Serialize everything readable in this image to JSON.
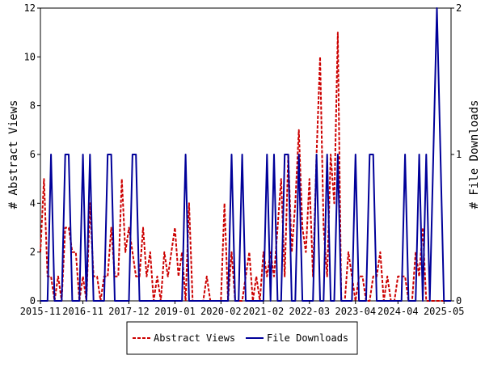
{
  "chart_data": {
    "type": "line",
    "title": "",
    "ylabel_left": "# Abstract Views",
    "ylabel_right": "# File Downloads",
    "ylim_left": [
      0,
      12
    ],
    "ylim_right": [
      0,
      2
    ],
    "yticks_left": [
      "0",
      "2",
      "4",
      "6",
      "8",
      "10",
      "12"
    ],
    "yticks_right": [
      "0",
      "1",
      "2"
    ],
    "x_range": [
      "2015-11",
      "2025-07"
    ],
    "xtick_labels": [
      "2015-11",
      "2016-11",
      "2017-12",
      "2019-01",
      "2020-02",
      "2021-02",
      "2022-03",
      "2023-04",
      "2024-04",
      "2025-05"
    ],
    "legend_position": "bottom-center",
    "series": [
      {
        "name": "Abstract Views",
        "axis": "left",
        "color": "#cc0000",
        "style": "dashed",
        "x": [
          "2015-11",
          "2015-12",
          "2016-01",
          "2016-02",
          "2016-03",
          "2016-04",
          "2016-05",
          "2016-06",
          "2016-07",
          "2016-08",
          "2016-09",
          "2016-10",
          "2016-11",
          "2016-12",
          "2017-01",
          "2017-02",
          "2017-03",
          "2017-04",
          "2017-05",
          "2017-06",
          "2017-07",
          "2017-08",
          "2017-09",
          "2017-10",
          "2017-11",
          "2017-12",
          "2018-01",
          "2018-02",
          "2018-03",
          "2018-04",
          "2018-05",
          "2018-06",
          "2018-07",
          "2018-08",
          "2018-09",
          "2018-10",
          "2018-11",
          "2018-12",
          "2019-01",
          "2019-02",
          "2019-03",
          "2019-04",
          "2019-05",
          "2019-06",
          "2019-07",
          "2019-08",
          "2019-09",
          "2019-10",
          "2019-11",
          "2019-12",
          "2020-01",
          "2020-02",
          "2020-03",
          "2020-04",
          "2020-05",
          "2020-06",
          "2020-07",
          "2020-08",
          "2020-09",
          "2020-10",
          "2020-11",
          "2020-12",
          "2021-01",
          "2021-02",
          "2021-03",
          "2021-04",
          "2021-05",
          "2021-06",
          "2021-07",
          "2021-08",
          "2021-09",
          "2021-10",
          "2021-11",
          "2021-12",
          "2022-01",
          "2022-02",
          "2022-03",
          "2022-04",
          "2022-05",
          "2022-06",
          "2022-07",
          "2022-08",
          "2022-09",
          "2022-10",
          "2022-11",
          "2022-12",
          "2023-01",
          "2023-02",
          "2023-03",
          "2023-04",
          "2023-05",
          "2023-06",
          "2023-07",
          "2023-08",
          "2023-09",
          "2023-10",
          "2023-11",
          "2023-12",
          "2024-01",
          "2024-02",
          "2024-03",
          "2024-04",
          "2024-05",
          "2024-06",
          "2024-07",
          "2024-08",
          "2024-09",
          "2024-10",
          "2024-11",
          "2024-12",
          "2025-01",
          "2025-02",
          "2025-03",
          "2025-04",
          "2025-05",
          "2025-06",
          "2025-07"
        ],
        "values": [
          2,
          5,
          1,
          1,
          0,
          1,
          0,
          3,
          3,
          2,
          2,
          0,
          1,
          0,
          4,
          1,
          1,
          0,
          1,
          1,
          3,
          1,
          1,
          5,
          2,
          3,
          2,
          1,
          1,
          3,
          1,
          2,
          0,
          1,
          0,
          2,
          1,
          2,
          3,
          1,
          2,
          0,
          4,
          0,
          0,
          0,
          0,
          1,
          0,
          0,
          0,
          0,
          4,
          0,
          2,
          0,
          0,
          0,
          1,
          2,
          0,
          1,
          0,
          2,
          1,
          2,
          1,
          3,
          5,
          1,
          6,
          2,
          4,
          7,
          3,
          2,
          5,
          1,
          6,
          10,
          3,
          1,
          6,
          4,
          11,
          0,
          0,
          2,
          1,
          0,
          1,
          1,
          0,
          0,
          1,
          1,
          2,
          0,
          1,
          0,
          0,
          1,
          1,
          1,
          0,
          0,
          2,
          1,
          3,
          0,
          0,
          0,
          0,
          0,
          0,
          0,
          0
        ]
      },
      {
        "name": "File Downloads",
        "axis": "right",
        "color": "#000099",
        "style": "solid",
        "x": [
          "2015-11",
          "2015-12",
          "2016-01",
          "2016-02",
          "2016-03",
          "2016-04",
          "2016-05",
          "2016-06",
          "2016-07",
          "2016-08",
          "2016-09",
          "2016-10",
          "2016-11",
          "2016-12",
          "2017-01",
          "2017-02",
          "2017-03",
          "2017-04",
          "2017-05",
          "2017-06",
          "2017-07",
          "2017-08",
          "2017-09",
          "2017-10",
          "2017-11",
          "2017-12",
          "2018-01",
          "2018-02",
          "2018-03",
          "2018-04",
          "2018-05",
          "2018-06",
          "2018-07",
          "2018-08",
          "2018-09",
          "2018-10",
          "2018-11",
          "2018-12",
          "2019-01",
          "2019-02",
          "2019-03",
          "2019-04",
          "2019-05",
          "2019-06",
          "2019-07",
          "2019-08",
          "2019-09",
          "2019-10",
          "2019-11",
          "2019-12",
          "2020-01",
          "2020-02",
          "2020-03",
          "2020-04",
          "2020-05",
          "2020-06",
          "2020-07",
          "2020-08",
          "2020-09",
          "2020-10",
          "2020-11",
          "2020-12",
          "2021-01",
          "2021-02",
          "2021-03",
          "2021-04",
          "2021-05",
          "2021-06",
          "2021-07",
          "2021-08",
          "2021-09",
          "2021-10",
          "2021-11",
          "2021-12",
          "2022-01",
          "2022-02",
          "2022-03",
          "2022-04",
          "2022-05",
          "2022-06",
          "2022-07",
          "2022-08",
          "2022-09",
          "2022-10",
          "2022-11",
          "2022-12",
          "2023-01",
          "2023-02",
          "2023-03",
          "2023-04",
          "2023-05",
          "2023-06",
          "2023-07",
          "2023-08",
          "2023-09",
          "2023-10",
          "2023-11",
          "2023-12",
          "2024-01",
          "2024-02",
          "2024-03",
          "2024-04",
          "2024-05",
          "2024-06",
          "2024-07",
          "2024-08",
          "2024-09",
          "2024-10",
          "2024-11",
          "2024-12",
          "2025-01",
          "2025-02",
          "2025-03",
          "2025-04",
          "2025-05",
          "2025-06",
          "2025-07"
        ],
        "values": [
          0,
          0,
          0,
          1,
          0,
          0,
          0,
          1,
          1,
          0,
          0,
          0,
          1,
          0,
          1,
          0,
          0,
          0,
          0,
          1,
          1,
          0,
          0,
          0,
          0,
          0,
          1,
          1,
          0,
          0,
          0,
          0,
          0,
          0,
          0,
          0,
          0,
          0,
          0,
          0,
          0,
          1,
          0,
          0,
          0,
          0,
          0,
          0,
          0,
          0,
          0,
          0,
          0,
          0,
          1,
          0,
          0,
          1,
          0,
          0,
          0,
          0,
          0,
          0,
          1,
          0,
          1,
          0,
          0,
          1,
          1,
          0,
          0,
          1,
          0,
          0,
          0,
          0,
          1,
          0,
          0,
          1,
          0,
          0,
          1,
          0,
          0,
          0,
          0,
          1,
          0,
          0,
          0,
          1,
          1,
          0,
          0,
          0,
          0,
          0,
          0,
          0,
          0,
          1,
          0,
          0,
          0,
          1,
          0,
          1,
          0,
          1,
          2,
          1,
          0,
          0,
          0
        ]
      }
    ]
  }
}
